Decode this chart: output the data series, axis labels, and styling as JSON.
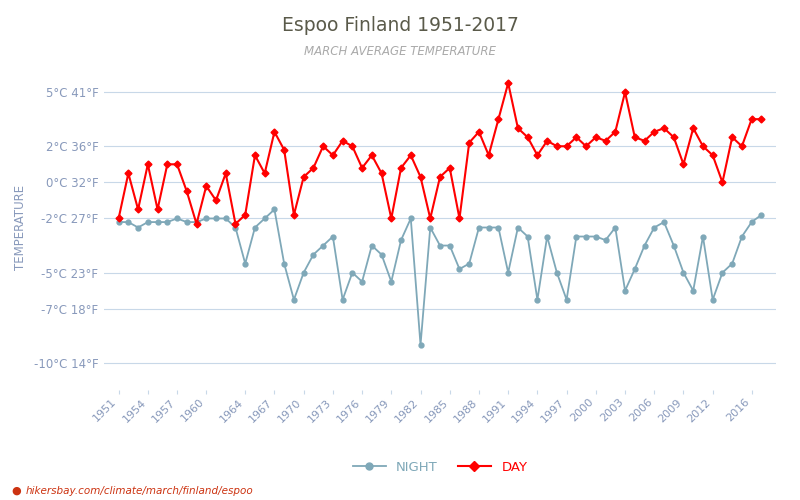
{
  "title": "Espoo Finland 1951-2017",
  "subtitle": "MARCH AVERAGE TEMPERATURE",
  "ylabel": "TEMPERATURE",
  "watermark": "hikersbay.com/climate/march/finland/espoo",
  "title_color": "#5a5a4a",
  "subtitle_color": "#aaaaaa",
  "axis_label_color": "#8899bb",
  "tick_color": "#8899bb",
  "background_color": "#ffffff",
  "grid_color": "#c8d8e8",
  "day_color": "#ff0000",
  "night_color": "#7fa8b8",
  "years": [
    1951,
    1952,
    1953,
    1954,
    1955,
    1956,
    1957,
    1958,
    1959,
    1960,
    1961,
    1962,
    1963,
    1964,
    1965,
    1966,
    1967,
    1968,
    1969,
    1970,
    1971,
    1972,
    1973,
    1974,
    1975,
    1976,
    1977,
    1978,
    1979,
    1980,
    1981,
    1982,
    1983,
    1984,
    1985,
    1986,
    1987,
    1988,
    1989,
    1990,
    1991,
    1992,
    1993,
    1994,
    1995,
    1996,
    1997,
    1998,
    1999,
    2000,
    2001,
    2002,
    2003,
    2004,
    2005,
    2006,
    2007,
    2008,
    2009,
    2010,
    2011,
    2012,
    2013,
    2014,
    2015,
    2016,
    2017
  ],
  "day": [
    -2.0,
    0.5,
    -1.5,
    1.0,
    -1.5,
    1.0,
    1.0,
    -0.5,
    -2.3,
    -0.2,
    -1.0,
    0.5,
    -2.3,
    -1.8,
    1.5,
    0.5,
    2.8,
    1.8,
    -1.8,
    0.3,
    0.8,
    2.0,
    1.5,
    2.3,
    2.0,
    0.8,
    1.5,
    0.5,
    -2.0,
    0.8,
    1.5,
    0.3,
    -2.0,
    0.3,
    0.8,
    -2.0,
    2.2,
    2.8,
    1.5,
    3.5,
    5.5,
    3.0,
    2.5,
    1.5,
    2.3,
    2.0,
    2.0,
    2.5,
    2.0,
    2.5,
    2.3,
    2.8,
    5.0,
    2.5,
    2.3,
    2.8,
    3.0,
    2.5,
    1.0,
    3.0,
    2.0,
    1.5,
    0.0,
    2.5,
    2.0,
    3.5,
    3.5
  ],
  "night": [
    -2.2,
    -2.2,
    -2.5,
    -2.2,
    -2.2,
    -2.2,
    -2.0,
    -2.2,
    -2.2,
    -2.0,
    -2.0,
    -2.0,
    -2.5,
    -4.5,
    -2.5,
    -2.0,
    -1.5,
    -4.5,
    -6.5,
    -5.0,
    -4.0,
    -3.5,
    -3.0,
    -6.5,
    -5.0,
    -5.5,
    -3.5,
    -4.0,
    -5.5,
    -3.2,
    -2.0,
    -9.0,
    -2.5,
    -3.5,
    -3.5,
    -4.8,
    -4.5,
    -2.5,
    -2.5,
    -2.5,
    -5.0,
    -2.5,
    -3.0,
    -6.5,
    -3.0,
    -5.0,
    -6.5,
    -3.0,
    -3.0,
    -3.0,
    -3.2,
    -2.5,
    -6.0,
    -4.8,
    -3.5,
    -2.5,
    -2.2,
    -3.5,
    -5.0,
    -6.0,
    -3.0,
    -6.5,
    -5.0,
    -4.5,
    -3.0,
    -2.2,
    -1.8
  ],
  "yticks_c": [
    5,
    2,
    0,
    -2,
    -5,
    -7,
    -10
  ],
  "yticks_f": [
    41,
    36,
    32,
    27,
    23,
    18,
    14
  ],
  "ylim": [
    -11.5,
    6.5
  ],
  "xlim": [
    1949.5,
    2018.5
  ],
  "xtick_years": [
    1951,
    1954,
    1957,
    1960,
    1964,
    1967,
    1970,
    1973,
    1976,
    1979,
    1982,
    1985,
    1988,
    1991,
    1994,
    1997,
    2000,
    2003,
    2006,
    2009,
    2012,
    2016
  ]
}
